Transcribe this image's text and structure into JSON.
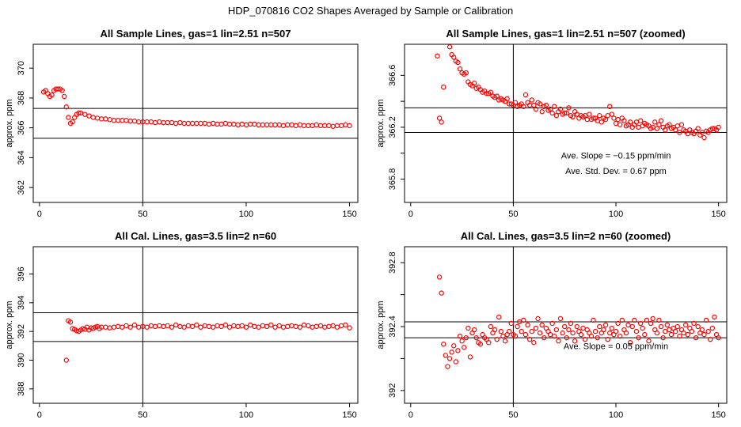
{
  "figure_title": "HDP_070816  CO2 Shapes Averaged by Sample or Calibration",
  "chart_data": [
    {
      "type": "scatter",
      "title": "All Sample Lines, gas=1 lin=2.51 n=507",
      "xlabel": "",
      "ylabel": "approx. ppm",
      "xlim": [
        -3,
        154
      ],
      "ylim": [
        361,
        371.6
      ],
      "xticks": [
        0,
        50,
        100,
        150
      ],
      "yticks": [
        362,
        364,
        366,
        368,
        370
      ],
      "hlines": [
        367.3,
        365.3
      ],
      "vline": 50,
      "marker_color": "#ff0000",
      "annotations": [],
      "series": [
        {
          "x": [
            2,
            3,
            4,
            5,
            6,
            7,
            8,
            9,
            10,
            11,
            12,
            13,
            14,
            15,
            16,
            17,
            18,
            19,
            20,
            22,
            24,
            26,
            28,
            30,
            32,
            34,
            36,
            38,
            40,
            42,
            44,
            46,
            48,
            50,
            52,
            54,
            56,
            58,
            60,
            62,
            64,
            66,
            68,
            70,
            72,
            74,
            76,
            78,
            80,
            82,
            84,
            86,
            88,
            90,
            92,
            94,
            96,
            98,
            100,
            102,
            104,
            106,
            108,
            110,
            112,
            114,
            116,
            118,
            120,
            122,
            124,
            126,
            128,
            130,
            132,
            134,
            136,
            138,
            140,
            142,
            144,
            146,
            148,
            150
          ],
          "y": [
            368.4,
            368.5,
            368.3,
            368.1,
            368.2,
            368.5,
            368.6,
            368.6,
            368.6,
            368.5,
            368.1,
            367.4,
            366.7,
            366.3,
            366.4,
            366.7,
            366.9,
            367.0,
            367.0,
            366.9,
            366.8,
            366.7,
            366.65,
            366.6,
            366.6,
            366.55,
            366.5,
            366.5,
            366.5,
            366.5,
            366.45,
            366.45,
            366.4,
            366.4,
            366.4,
            366.4,
            366.35,
            366.4,
            366.35,
            366.35,
            366.35,
            366.3,
            366.35,
            366.3,
            366.3,
            366.3,
            366.3,
            366.3,
            366.3,
            366.25,
            366.3,
            366.25,
            366.25,
            366.3,
            366.25,
            366.25,
            366.2,
            366.25,
            366.2,
            366.25,
            366.25,
            366.2,
            366.2,
            366.2,
            366.2,
            366.2,
            366.2,
            366.15,
            366.2,
            366.2,
            366.15,
            366.2,
            366.15,
            366.15,
            366.15,
            366.2,
            366.15,
            366.15,
            366.15,
            366.1,
            366.15,
            366.15,
            366.2,
            366.15
          ]
        }
      ]
    },
    {
      "type": "scatter",
      "title": "All Sample Lines, gas=1 lin=2.51 n=507 (zoomed)",
      "xlabel": "",
      "ylabel": "approx. ppm",
      "xlim": [
        -3,
        154
      ],
      "ylim": [
        365.62,
        366.84
      ],
      "xticks": [
        0,
        50,
        100,
        150
      ],
      "yticks": [
        365.8,
        366.2,
        366.6
      ],
      "minor_yticks": [
        366.0,
        366.4
      ],
      "hlines": [
        366.35,
        366.16
      ],
      "vline": 50,
      "marker_color": "#ff0000",
      "annotations": [
        {
          "text": "Ave. Slope =  −0.15  ppm/min",
          "x": 100,
          "y": 365.96
        },
        {
          "text": "Ave. Std. Dev. =  0.67  ppm",
          "x": 100,
          "y": 365.84
        }
      ],
      "series": [
        {
          "x": [
            13,
            14,
            15,
            16,
            18,
            19,
            20,
            21,
            22,
            23,
            24,
            25,
            26,
            27,
            28,
            29,
            30,
            31,
            32,
            33,
            34,
            35,
            36,
            37,
            38,
            39,
            40,
            41,
            42,
            43,
            44,
            45,
            46,
            47,
            48,
            49,
            50,
            51,
            52,
            53,
            54,
            55,
            56,
            57,
            58,
            59,
            60,
            61,
            62,
            63,
            64,
            65,
            66,
            67,
            68,
            69,
            70,
            71,
            72,
            73,
            74,
            75,
            76,
            77,
            78,
            79,
            80,
            81,
            82,
            83,
            84,
            85,
            86,
            87,
            88,
            89,
            90,
            91,
            92,
            93,
            94,
            95,
            96,
            97,
            98,
            99,
            100,
            101,
            102,
            103,
            104,
            105,
            106,
            107,
            108,
            109,
            110,
            111,
            112,
            113,
            114,
            115,
            116,
            117,
            118,
            119,
            120,
            121,
            122,
            123,
            124,
            125,
            126,
            127,
            128,
            129,
            130,
            131,
            132,
            133,
            134,
            135,
            136,
            137,
            138,
            139,
            140,
            141,
            142,
            143,
            144,
            145,
            146,
            147,
            148,
            149,
            150
          ],
          "y": [
            366.75,
            366.27,
            366.24,
            366.51,
            366.87,
            366.82,
            366.76,
            366.74,
            366.71,
            366.7,
            366.65,
            366.62,
            366.61,
            366.62,
            366.55,
            366.53,
            366.52,
            366.54,
            366.5,
            366.51,
            366.49,
            366.47,
            366.48,
            366.46,
            366.46,
            366.47,
            366.44,
            366.43,
            366.44,
            366.41,
            366.42,
            366.41,
            366.4,
            366.42,
            366.38,
            366.38,
            366.37,
            366.39,
            366.36,
            366.37,
            366.38,
            366.36,
            366.45,
            366.39,
            366.37,
            366.41,
            366.37,
            366.34,
            366.39,
            366.38,
            366.32,
            366.36,
            366.37,
            366.33,
            366.34,
            366.31,
            366.36,
            366.29,
            366.32,
            366.34,
            366.3,
            366.31,
            366.31,
            366.35,
            366.29,
            366.28,
            366.32,
            366.3,
            366.27,
            366.29,
            366.28,
            366.29,
            366.26,
            366.3,
            366.26,
            366.27,
            366.27,
            366.25,
            366.29,
            366.24,
            366.27,
            366.26,
            366.29,
            366.36,
            366.3,
            366.27,
            366.23,
            366.26,
            366.22,
            366.27,
            366.25,
            366.21,
            366.22,
            366.24,
            366.2,
            366.22,
            366.24,
            366.2,
            366.25,
            366.21,
            366.23,
            366.22,
            366.21,
            366.19,
            366.2,
            366.24,
            366.19,
            366.22,
            366.25,
            366.2,
            366.18,
            366.21,
            366.22,
            366.19,
            366.2,
            366.18,
            366.21,
            366.16,
            366.22,
            366.18,
            366.17,
            366.15,
            366.18,
            366.16,
            366.15,
            366.17,
            366.19,
            366.14,
            366.16,
            366.12,
            366.17,
            366.16,
            366.18,
            366.19,
            366.19,
            366.18,
            366.2
          ]
        }
      ]
    },
    {
      "type": "scatter",
      "title": "All Cal. Lines, gas=3.5 lin=2 n=60",
      "xlabel": "",
      "ylabel": "approx. ppm",
      "xlim": [
        -3,
        154
      ],
      "ylim": [
        387,
        397.9
      ],
      "xticks": [
        0,
        50,
        100,
        150
      ],
      "yticks": [
        388,
        390,
        392,
        394,
        396
      ],
      "hlines": [
        393.3,
        391.3
      ],
      "vline": 50,
      "marker_color": "#ff0000",
      "annotations": [],
      "series": [
        {
          "x": [
            13,
            14,
            15,
            16,
            17,
            18,
            19,
            20,
            21,
            22,
            23,
            24,
            25,
            26,
            27,
            28,
            29,
            30,
            32,
            34,
            36,
            38,
            40,
            42,
            44,
            46,
            48,
            50,
            52,
            54,
            56,
            58,
            60,
            62,
            64,
            66,
            68,
            70,
            72,
            74,
            76,
            78,
            80,
            82,
            84,
            86,
            88,
            90,
            92,
            94,
            96,
            98,
            100,
            102,
            104,
            106,
            108,
            110,
            112,
            114,
            116,
            118,
            120,
            122,
            124,
            126,
            128,
            130,
            132,
            134,
            136,
            138,
            140,
            142,
            144,
            146,
            148,
            150
          ],
          "y": [
            390.0,
            392.75,
            392.65,
            392.2,
            392.15,
            392.05,
            392.0,
            392.1,
            392.2,
            392.15,
            392.3,
            392.1,
            392.25,
            392.2,
            392.3,
            392.35,
            392.2,
            392.3,
            392.3,
            392.25,
            392.3,
            392.35,
            392.3,
            392.4,
            392.3,
            392.45,
            392.3,
            392.35,
            392.3,
            392.4,
            392.35,
            392.4,
            392.35,
            392.4,
            392.3,
            392.45,
            392.35,
            392.3,
            392.4,
            392.35,
            392.45,
            392.3,
            392.4,
            392.35,
            392.3,
            392.4,
            392.35,
            392.45,
            392.3,
            392.4,
            392.35,
            392.4,
            392.3,
            392.45,
            392.35,
            392.3,
            392.4,
            392.35,
            392.45,
            392.3,
            392.4,
            392.3,
            392.35,
            392.4,
            392.35,
            392.3,
            392.45,
            392.4,
            392.3,
            392.35,
            392.4,
            392.3,
            392.35,
            392.4,
            392.3,
            392.4,
            392.45,
            392.25
          ]
        }
      ]
    },
    {
      "type": "scatter",
      "title": "All Cal. Lines, gas=3.5 lin=2 n=60 (zoomed)",
      "xlabel": "",
      "ylabel": "approx. ppm",
      "xlim": [
        -3,
        154
      ],
      "ylim": [
        391.92,
        392.9
      ],
      "xticks": [
        0,
        50,
        100,
        150
      ],
      "yticks": [
        392.0,
        392.4,
        392.8
      ],
      "minor_yticks": [
        392.2,
        392.6
      ],
      "hlines": [
        392.43,
        392.33
      ],
      "vline": 50,
      "marker_color": "#ff0000",
      "annotations": [
        {
          "text": "Ave. Slope =  0.05  ppm/min",
          "x": 100,
          "y": 392.26
        }
      ],
      "series": [
        {
          "x": [
            14,
            15,
            16,
            17,
            18,
            19,
            20,
            21,
            22,
            23,
            24,
            25,
            26,
            27,
            28,
            29,
            30,
            31,
            32,
            33,
            34,
            35,
            36,
            37,
            38,
            39,
            40,
            41,
            42,
            43,
            44,
            45,
            46,
            47,
            48,
            49,
            50,
            51,
            52,
            53,
            54,
            55,
            56,
            57,
            58,
            59,
            60,
            61,
            62,
            63,
            64,
            65,
            66,
            67,
            68,
            69,
            70,
            71,
            72,
            73,
            74,
            75,
            76,
            77,
            78,
            79,
            80,
            81,
            82,
            83,
            84,
            85,
            86,
            87,
            88,
            89,
            90,
            91,
            92,
            93,
            94,
            95,
            96,
            97,
            98,
            99,
            100,
            101,
            102,
            103,
            104,
            105,
            106,
            107,
            108,
            109,
            110,
            111,
            112,
            113,
            114,
            115,
            116,
            117,
            118,
            119,
            120,
            121,
            122,
            123,
            124,
            125,
            126,
            127,
            128,
            129,
            130,
            131,
            132,
            133,
            134,
            135,
            136,
            137,
            138,
            139,
            140,
            141,
            142,
            143,
            144,
            145,
            146,
            147,
            148,
            149,
            150
          ],
          "y": [
            392.71,
            392.61,
            392.29,
            392.22,
            392.15,
            392.2,
            392.24,
            392.28,
            392.18,
            392.25,
            392.34,
            392.31,
            392.27,
            392.33,
            392.39,
            392.21,
            392.36,
            392.38,
            392.33,
            392.3,
            392.29,
            392.35,
            392.33,
            392.32,
            392.3,
            392.4,
            392.36,
            392.38,
            392.32,
            392.46,
            392.37,
            392.34,
            392.31,
            392.35,
            392.37,
            392.42,
            392.35,
            392.34,
            392.4,
            392.43,
            392.37,
            392.44,
            392.35,
            392.41,
            392.32,
            392.37,
            392.3,
            392.39,
            392.45,
            392.36,
            392.41,
            392.33,
            392.39,
            392.37,
            392.35,
            392.42,
            392.34,
            392.38,
            392.31,
            392.45,
            392.36,
            392.4,
            392.33,
            392.38,
            392.42,
            392.36,
            392.31,
            392.4,
            392.37,
            392.35,
            392.39,
            392.32,
            392.38,
            392.36,
            392.34,
            392.44,
            392.37,
            392.33,
            392.4,
            392.36,
            392.38,
            392.41,
            392.32,
            392.36,
            392.39,
            392.35,
            392.37,
            392.42,
            392.34,
            392.44,
            392.38,
            392.36,
            392.41,
            392.3,
            392.4,
            392.44,
            392.37,
            392.33,
            392.42,
            392.39,
            392.35,
            392.44,
            392.31,
            392.42,
            392.45,
            392.38,
            392.36,
            392.44,
            392.4,
            392.33,
            392.37,
            392.41,
            392.38,
            392.35,
            392.39,
            392.37,
            392.4,
            392.34,
            392.38,
            392.36,
            392.41,
            392.35,
            392.39,
            392.37,
            392.42,
            392.33,
            392.4,
            392.36,
            392.38,
            392.35,
            392.44,
            392.37,
            392.32,
            392.39,
            392.46,
            392.35,
            392.33
          ]
        }
      ]
    }
  ]
}
